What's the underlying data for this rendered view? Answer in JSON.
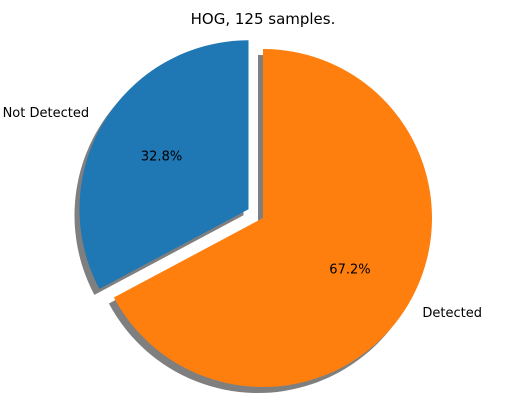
{
  "chart_data": {
    "type": "pie",
    "title": "HOG, 125 samples.",
    "slices": [
      {
        "label": "Not Detected",
        "value": 32.8,
        "pct_label": "32.8%",
        "color": "#1f77b4",
        "exploded": true
      },
      {
        "label": "Detected",
        "value": 67.2,
        "pct_label": "67.2%",
        "color": "#ff7f0e",
        "exploded": false
      }
    ],
    "start_angle_deg": 90,
    "direction": "counterclockwise",
    "shadow": true,
    "shadow_color": "#7f7f7f"
  }
}
